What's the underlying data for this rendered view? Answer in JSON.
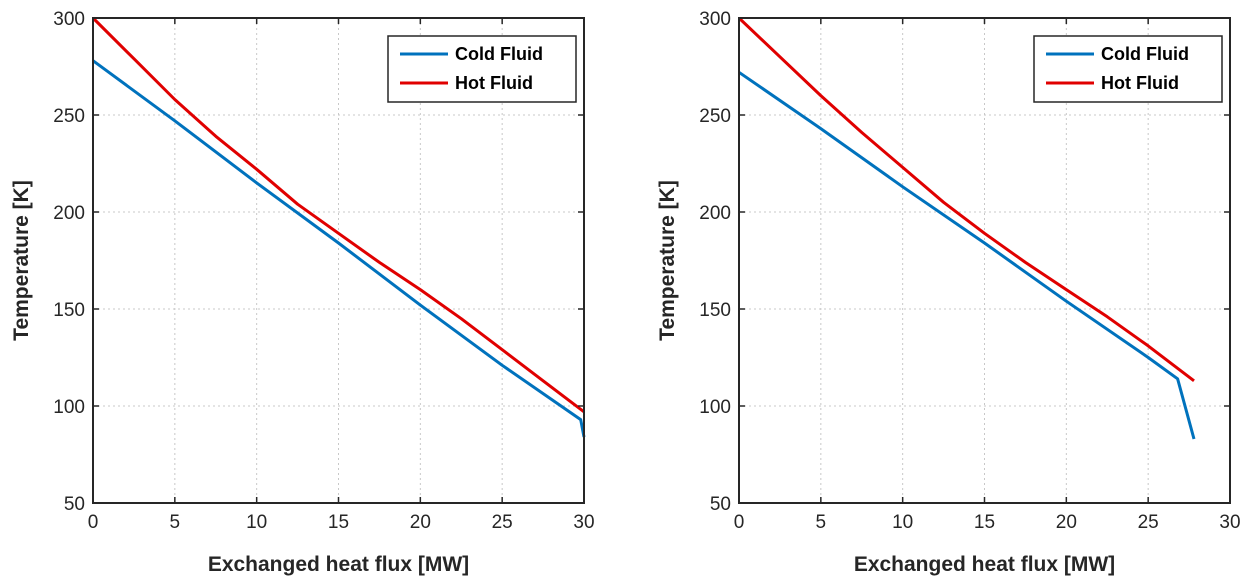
{
  "chart_data": [
    {
      "type": "line",
      "xlabel": "Exchanged heat flux [MW]",
      "ylabel": "Temperature [K]",
      "xlim": [
        0,
        30
      ],
      "ylim": [
        50,
        300
      ],
      "xticks": [
        "0",
        "5",
        "10",
        "15",
        "20",
        "25",
        "30"
      ],
      "yticks": [
        "50",
        "100",
        "150",
        "200",
        "250",
        "300"
      ],
      "grid": true,
      "legend": "top-right",
      "series": [
        {
          "name": "Cold Fluid",
          "color": "#0072bd",
          "x": [
            0,
            5,
            10,
            15,
            20,
            25,
            29.8,
            30
          ],
          "y": [
            278,
            247,
            215,
            184,
            152,
            121,
            93,
            84
          ]
        },
        {
          "name": "Hot Fluid",
          "color": "#e00000",
          "x": [
            0,
            2.5,
            5,
            7.5,
            10,
            12.5,
            15,
            17.5,
            20,
            22.5,
            25,
            27.5,
            30
          ],
          "y": [
            300,
            279,
            258,
            239,
            222,
            204,
            189,
            174,
            160,
            145,
            129,
            113,
            97
          ]
        }
      ]
    },
    {
      "type": "line",
      "xlabel": "Exchanged heat flux [MW]",
      "ylabel": "Temperature [K]",
      "xlim": [
        0,
        30
      ],
      "ylim": [
        50,
        300
      ],
      "xticks": [
        "0",
        "5",
        "10",
        "15",
        "20",
        "25",
        "30"
      ],
      "yticks": [
        "50",
        "100",
        "150",
        "200",
        "250",
        "300"
      ],
      "grid": true,
      "legend": "top-right",
      "series": [
        {
          "name": "Cold Fluid",
          "color": "#0072bd",
          "x": [
            0,
            5,
            10,
            15,
            20,
            25,
            26.8,
            27.8
          ],
          "y": [
            272,
            243,
            213,
            184,
            154,
            125,
            114,
            83
          ]
        },
        {
          "name": "Hot Fluid",
          "color": "#e00000",
          "x": [
            0,
            2.5,
            5,
            7.5,
            10,
            12.5,
            15,
            17.5,
            20,
            22.5,
            25,
            27.8
          ],
          "y": [
            300,
            280,
            260,
            241,
            223,
            205,
            189,
            174,
            160,
            146,
            131,
            113
          ]
        }
      ]
    }
  ]
}
